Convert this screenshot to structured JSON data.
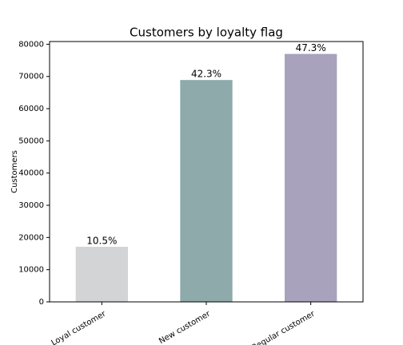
{
  "chart_data": {
    "type": "bar",
    "title": "Customers by loyalty flag",
    "ylabel": "Customers",
    "categories": [
      "Loyal customer",
      "New customer",
      "Regular customer"
    ],
    "values": [
      17100,
      68900,
      77000
    ],
    "annotations": [
      "10.5%",
      "42.3%",
      "47.3%"
    ],
    "colors": [
      "#d3d4d6",
      "#8eaaab",
      "#a8a2bc"
    ],
    "ylim": [
      0,
      80850
    ],
    "yticks": [
      0,
      10000,
      20000,
      30000,
      40000,
      50000,
      60000,
      70000,
      80000
    ],
    "grid": false
  }
}
